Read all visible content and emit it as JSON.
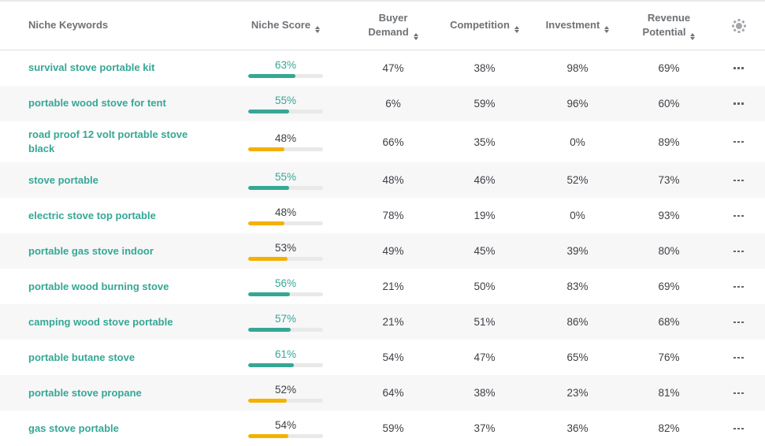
{
  "theme": {
    "teal_accent": "#35A795",
    "amber_accent": "#F3B100",
    "bar_track": "#E9E9E9",
    "header_text": "#6E7175",
    "value_text": "#3D4045",
    "stripe_bg": "#F7F7F8"
  },
  "table": {
    "columns": [
      {
        "label": "Niche Keywords",
        "sortable": false
      },
      {
        "label": "Niche Score",
        "sortable": true
      },
      {
        "label": "Buyer Demand",
        "sortable": true
      },
      {
        "label": "Competition",
        "sortable": true
      },
      {
        "label": "Investment",
        "sortable": true
      },
      {
        "label": "Revenue Potential",
        "sortable": true
      }
    ],
    "settings_icon": "gear-icon",
    "sort_icon": "sort-arrows-icon",
    "row_actions_icon": "ellipsis-icon",
    "rows": [
      {
        "keyword": "survival stove portable kit",
        "niche_score": "63%",
        "score_level": "high",
        "buyer_demand": "47%",
        "competition": "38%",
        "investment": "98%",
        "revenue_potential": "69%"
      },
      {
        "keyword": "portable wood stove for tent",
        "niche_score": "55%",
        "score_level": "high",
        "buyer_demand": "6%",
        "competition": "59%",
        "investment": "96%",
        "revenue_potential": "60%"
      },
      {
        "keyword": "road proof 12 volt portable stove black",
        "niche_score": "48%",
        "score_level": "medium",
        "buyer_demand": "66%",
        "competition": "35%",
        "investment": "0%",
        "revenue_potential": "89%"
      },
      {
        "keyword": "stove portable",
        "niche_score": "55%",
        "score_level": "high",
        "buyer_demand": "48%",
        "competition": "46%",
        "investment": "52%",
        "revenue_potential": "73%"
      },
      {
        "keyword": "electric stove top portable",
        "niche_score": "48%",
        "score_level": "medium",
        "buyer_demand": "78%",
        "competition": "19%",
        "investment": "0%",
        "revenue_potential": "93%"
      },
      {
        "keyword": "portable gas stove indoor",
        "niche_score": "53%",
        "score_level": "medium",
        "buyer_demand": "49%",
        "competition": "45%",
        "investment": "39%",
        "revenue_potential": "80%"
      },
      {
        "keyword": "portable wood burning stove",
        "niche_score": "56%",
        "score_level": "high",
        "buyer_demand": "21%",
        "competition": "50%",
        "investment": "83%",
        "revenue_potential": "69%"
      },
      {
        "keyword": "camping wood stove portable",
        "niche_score": "57%",
        "score_level": "high",
        "buyer_demand": "21%",
        "competition": "51%",
        "investment": "86%",
        "revenue_potential": "68%"
      },
      {
        "keyword": "portable butane stove",
        "niche_score": "61%",
        "score_level": "high",
        "buyer_demand": "54%",
        "competition": "47%",
        "investment": "65%",
        "revenue_potential": "76%"
      },
      {
        "keyword": "portable stove propane",
        "niche_score": "52%",
        "score_level": "medium",
        "buyer_demand": "64%",
        "competition": "38%",
        "investment": "23%",
        "revenue_potential": "81%"
      },
      {
        "keyword": "gas stove portable",
        "niche_score": "54%",
        "score_level": "medium",
        "buyer_demand": "59%",
        "competition": "37%",
        "investment": "36%",
        "revenue_potential": "82%"
      }
    ]
  }
}
